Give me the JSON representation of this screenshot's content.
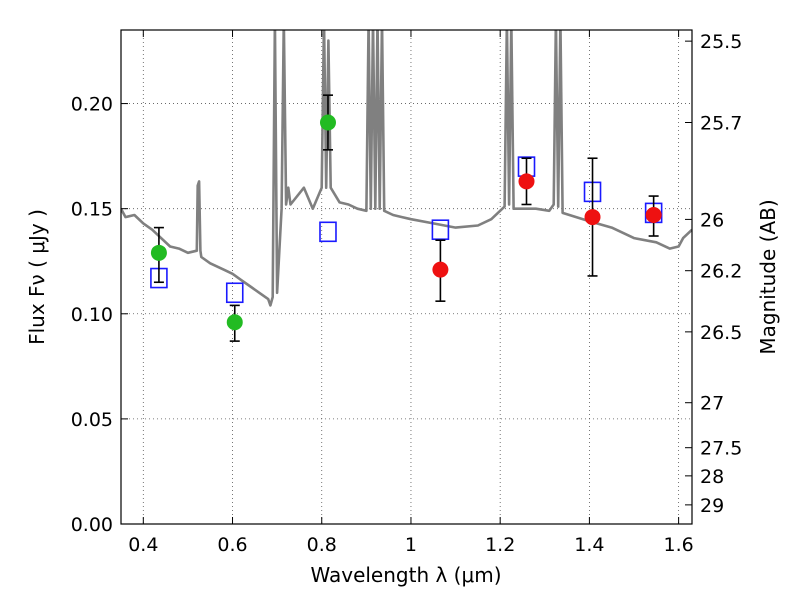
{
  "chart_data": {
    "type": "scatter",
    "title": "",
    "xlabel": "Wavelength  λ (μm)",
    "ylabel": "Flux  Fν  ( μJy )",
    "y2label": "Magnitude (AB)",
    "xlim": [
      0.35,
      1.63
    ],
    "ylim": [
      0.0,
      0.235
    ],
    "grid": true,
    "x_ticks": [
      0.4,
      0.6,
      0.8,
      1.0,
      1.2,
      1.4,
      1.6
    ],
    "x_tick_labels": [
      "0.4",
      "0.6",
      "0.8",
      "1",
      "1.2",
      "1.4",
      "1.6"
    ],
    "y_ticks": [
      0.0,
      0.05,
      0.1,
      0.15,
      0.2
    ],
    "y_tick_labels": [
      "0.00",
      "0.05",
      "0.10",
      "0.15",
      "0.20"
    ],
    "y2_ticks": [
      {
        "label": "25.5",
        "flux": 0.2297
      },
      {
        "label": "25.7",
        "flux": 0.191
      },
      {
        "label": "26",
        "flux": 0.1449
      },
      {
        "label": "26.2",
        "flux": 0.1205
      },
      {
        "label": "26.5",
        "flux": 0.0914
      },
      {
        "label": "27",
        "flux": 0.0577
      },
      {
        "label": "27.5",
        "flux": 0.0363
      },
      {
        "label": "28",
        "flux": 0.0229
      },
      {
        "label": "29",
        "flux": 0.0091
      }
    ],
    "colors": {
      "spectrum": "#808080",
      "green": "#22bb22",
      "red": "#ee1111",
      "model": "#1a1aff",
      "errorbar": "#000000",
      "grid": "#555555"
    },
    "series": [
      {
        "marker": "circle-green",
        "points": [
          {
            "x": 0.435,
            "y": 0.129,
            "err_low": 0.115,
            "err_high": 0.141
          },
          {
            "x": 0.605,
            "y": 0.096,
            "err_low": 0.087,
            "err_high": 0.104
          },
          {
            "x": 0.814,
            "y": 0.191,
            "err_low": 0.178,
            "err_high": 0.204
          }
        ]
      },
      {
        "marker": "circle-red",
        "points": [
          {
            "x": 1.066,
            "y": 0.121,
            "err_low": 0.106,
            "err_high": 0.135
          },
          {
            "x": 1.259,
            "y": 0.163,
            "err_low": 0.152,
            "err_high": 0.174
          },
          {
            "x": 1.407,
            "y": 0.146,
            "err_low": 0.118,
            "err_high": 0.174
          },
          {
            "x": 1.544,
            "y": 0.147,
            "err_low": 0.137,
            "err_high": 0.156
          }
        ]
      },
      {
        "marker": "square-open-blue",
        "points": [
          {
            "x": 0.435,
            "y": 0.117
          },
          {
            "x": 0.605,
            "y": 0.11
          },
          {
            "x": 0.814,
            "y": 0.139
          },
          {
            "x": 1.066,
            "y": 0.14
          },
          {
            "x": 1.259,
            "y": 0.17
          },
          {
            "x": 1.407,
            "y": 0.158
          },
          {
            "x": 1.544,
            "y": 0.148
          }
        ]
      },
      {
        "marker": "line-gray",
        "x": [
          0.35,
          0.36,
          0.38,
          0.4,
          0.42,
          0.44,
          0.46,
          0.48,
          0.5,
          0.52,
          0.522,
          0.525,
          0.528,
          0.53,
          0.55,
          0.58,
          0.6,
          0.62,
          0.64,
          0.66,
          0.68,
          0.685,
          0.69,
          0.695,
          0.7,
          0.71,
          0.715,
          0.72,
          0.725,
          0.73,
          0.76,
          0.78,
          0.8,
          0.805,
          0.81,
          0.815,
          0.82,
          0.84,
          0.86,
          0.88,
          0.9,
          0.905,
          0.91,
          0.915,
          0.92,
          0.925,
          0.93,
          0.935,
          0.94,
          0.96,
          0.98,
          1.0,
          1.05,
          1.1,
          1.15,
          1.18,
          1.21,
          1.215,
          1.22,
          1.225,
          1.23,
          1.28,
          1.31,
          1.32,
          1.325,
          1.33,
          1.335,
          1.34,
          1.4,
          1.45,
          1.5,
          1.55,
          1.58,
          1.6,
          1.61,
          1.63
        ],
        "y": [
          0.15,
          0.146,
          0.147,
          0.143,
          0.14,
          0.136,
          0.132,
          0.131,
          0.129,
          0.13,
          0.161,
          0.163,
          0.13,
          0.127,
          0.124,
          0.121,
          0.119,
          0.116,
          0.113,
          0.11,
          0.107,
          0.104,
          0.108,
          0.24,
          0.11,
          0.15,
          0.24,
          0.152,
          0.16,
          0.152,
          0.16,
          0.15,
          0.16,
          0.24,
          0.16,
          0.23,
          0.16,
          0.153,
          0.152,
          0.15,
          0.149,
          0.24,
          0.15,
          0.24,
          0.15,
          0.24,
          0.15,
          0.24,
          0.149,
          0.147,
          0.146,
          0.145,
          0.143,
          0.141,
          0.142,
          0.145,
          0.151,
          0.24,
          0.152,
          0.24,
          0.15,
          0.15,
          0.149,
          0.152,
          0.24,
          0.151,
          0.24,
          0.148,
          0.144,
          0.141,
          0.136,
          0.134,
          0.131,
          0.132,
          0.136,
          0.14
        ]
      }
    ]
  }
}
